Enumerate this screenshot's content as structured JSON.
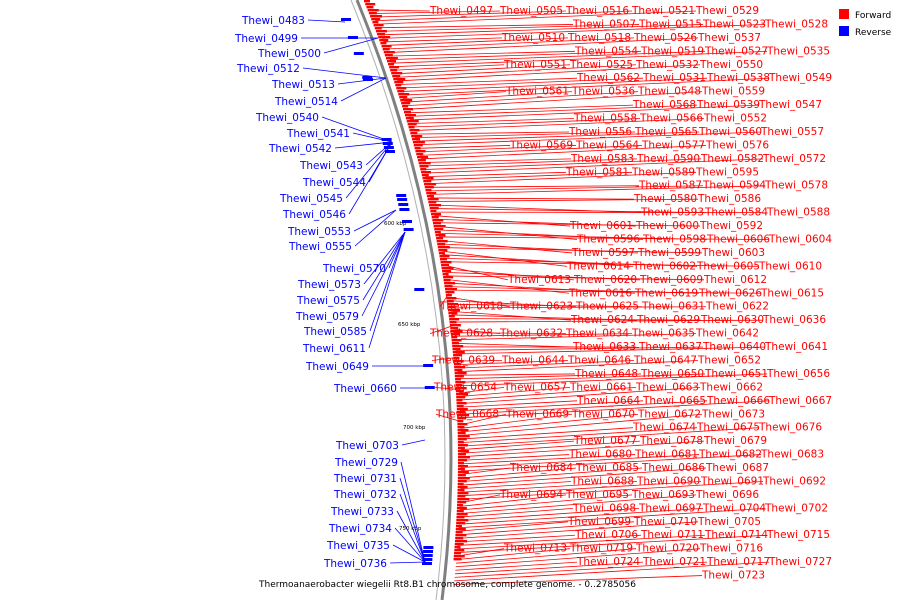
{
  "colors": {
    "forward": "#ff0000",
    "reverse": "#0000ff",
    "backbone": "#808080",
    "text": "#000000"
  },
  "legend": [
    {
      "label": "Forward",
      "color": "#ff0000"
    },
    {
      "label": "Reverse",
      "color": "#0000ff"
    }
  ],
  "caption": "Thermoanaerobacter wiegelii Rt8.B1 chromosome, complete genome. - 0..2785056",
  "ticks": [
    "600 kbp",
    "650 kbp",
    "700 kbp",
    "750 kbp"
  ],
  "reverse_genes": [
    "Thewi_0483",
    "Thewi_0499",
    "Thewi_0500",
    "Thewi_0512",
    "Thewi_0513",
    "Thewi_0514",
    "Thewi_0540",
    "Thewi_0541",
    "Thewi_0542",
    "Thewi_0543",
    "Thewi_0544",
    "Thewi_0545",
    "Thewi_0546",
    "Thewi_0553",
    "Thewi_0555",
    "Thewi_0570",
    "Thewi_0573",
    "Thewi_0575",
    "Thewi_0579",
    "Thewi_0585",
    "Thewi_0611",
    "Thewi_0649",
    "Thewi_0660",
    "Thewi_0703",
    "Thewi_0729",
    "Thewi_0731",
    "Thewi_0732",
    "Thewi_0733",
    "Thewi_0734",
    "Thewi_0735",
    "Thewi_0736"
  ],
  "forward_genes": [
    "Thewi_0497",
    "Thewi_0505",
    "Thewi_0516",
    "Thewi_0521",
    "Thewi_0529",
    "Thewi_0507",
    "Thewi_0515",
    "Thewi_0523",
    "Thewi_0528",
    "Thewi_0510",
    "Thewi_0518",
    "Thewi_0526",
    "Thewi_0537",
    "Thewi_0554",
    "Thewi_0519",
    "Thewi_0527",
    "Thewi_0535",
    "Thewi_0551",
    "Thewi_0525",
    "Thewi_0532",
    "Thewi_0550",
    "Thewi_0562",
    "Thewi_0531",
    "Thewi_0538",
    "Thewi_0549",
    "Thewi_0561",
    "Thewi_0536",
    "Thewi_0548",
    "Thewi_0559",
    "Thewi_0568",
    "Thewi_0539",
    "Thewi_0547",
    "Thewi_0558",
    "Thewi_0566",
    "Thewi_0552",
    "Thewi_0556",
    "Thewi_0565",
    "Thewi_0560",
    "Thewi_0557",
    "Thewi_0569",
    "Thewi_0564",
    "Thewi_0577",
    "Thewi_0576",
    "Thewi_0583",
    "Thewi_0590",
    "Thewi_0582",
    "Thewi_0572",
    "Thewi_0581",
    "Thewi_0589",
    "Thewi_0595",
    "Thewi_0587",
    "Thewi_0594",
    "Thewi_0578",
    "Thewi_0580",
    "Thewi_0586",
    "Thewi_0593",
    "Thewi_0584",
    "Thewi_0588",
    "Thewi_0601",
    "Thewi_0600",
    "Thewi_0592",
    "Thewi_0596",
    "Thewi_0598",
    "Thewi_0606",
    "Thewi_0604",
    "Thewi_0597",
    "Thewi_0599",
    "Thewi_0603",
    "Thewi_0614",
    "Thewi_0602",
    "Thewi_0605",
    "Thewi_0610",
    "Thewi_0613",
    "Thewi_0620",
    "Thewi_0609",
    "Thewi_0612",
    "Thewi_0616",
    "Thewi_0619",
    "Thewi_0626",
    "Thewi_0615",
    "Thewi_0618",
    "Thewi_0623",
    "Thewi_0625",
    "Thewi_0631",
    "Thewi_0622",
    "Thewi_0624",
    "Thewi_0629",
    "Thewi_0630",
    "Thewi_0636",
    "Thewi_0628",
    "Thewi_0632",
    "Thewi_0634",
    "Thewi_0635",
    "Thewi_0642",
    "Thewi_0633",
    "Thewi_0637",
    "Thewi_0640",
    "Thewi_0641",
    "Thewi_0639",
    "Thewi_0644",
    "Thewi_0646",
    "Thewi_0647",
    "Thewi_0652",
    "Thewi_0648",
    "Thewi_0650",
    "Thewi_0651",
    "Thewi_0656",
    "Thewi_0654",
    "Thewi_0657",
    "Thewi_0661",
    "Thewi_0663",
    "Thewi_0662",
    "Thewi_0664",
    "Thewi_0665",
    "Thewi_0666",
    "Thewi_0667",
    "Thewi_0668",
    "Thewi_0669",
    "Thewi_0670",
    "Thewi_0672",
    "Thewi_0673",
    "Thewi_0674",
    "Thewi_0675",
    "Thewi_0676",
    "Thewi_0677",
    "Thewi_0678",
    "Thewi_0679",
    "Thewi_0680",
    "Thewi_0681",
    "Thewi_0682",
    "Thewi_0683",
    "Thewi_0684",
    "Thewi_0685",
    "Thewi_0686",
    "Thewi_0687",
    "Thewi_0688",
    "Thewi_0690",
    "Thewi_0691",
    "Thewi_0692",
    "Thewi_0694",
    "Thewi_0695",
    "Thewi_0693",
    "Thewi_0696",
    "Thewi_0698",
    "Thewi_0697",
    "Thewi_0704",
    "Thewi_0702",
    "Thewi_0699",
    "Thewi_0710",
    "Thewi_0705",
    "Thewi_0706",
    "Thewi_0711",
    "Thewi_0714",
    "Thewi_0715",
    "Thewi_0713",
    "Thewi_0719",
    "Thewi_0720",
    "Thewi_0716",
    "Thewi_0724",
    "Thewi_0721",
    "Thewi_0717",
    "Thewi_0727",
    "Thewi_0723"
  ]
}
